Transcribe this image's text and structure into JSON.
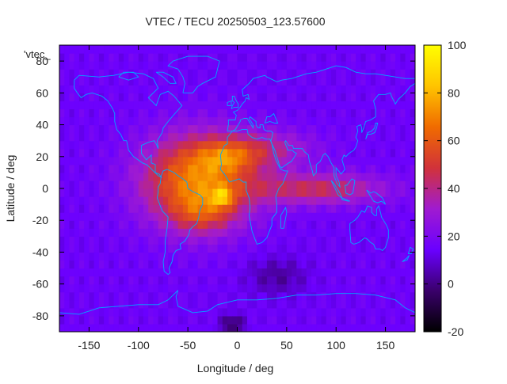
{
  "chart_data": {
    "type": "heatmap",
    "title": "VTEC / TECU 20250503_123.57600",
    "xlabel": "Longitude / deg",
    "ylabel": "Latitude / deg",
    "xlim": [
      -180,
      180
    ],
    "ylim": [
      -90,
      90
    ],
    "x_ticks": [
      -150,
      -100,
      -50,
      0,
      50,
      100,
      150
    ],
    "y_ticks": [
      -80,
      -60,
      -40,
      -20,
      0,
      20,
      40,
      60,
      80
    ],
    "colorbar": {
      "range": [
        -20,
        100
      ],
      "ticks": [
        -20,
        0,
        20,
        40,
        60,
        80,
        100
      ],
      "colors": [
        "#000000",
        "#3a006b",
        "#6a00ff",
        "#a01bd0",
        "#d1323a",
        "#f06b00",
        "#ffc400",
        "#ffff00"
      ]
    },
    "legend": {
      "label": "'vtec_",
      "position": "top-left"
    },
    "grid": false,
    "overlay": "coastlines",
    "overlay_color": "#00a8ff",
    "peak": {
      "lon": -15,
      "lat": -5,
      "value": 98
    },
    "features": [
      {
        "name": "equatorial-anomaly-core",
        "lon": -40,
        "lat": 5,
        "value": 80
      },
      {
        "name": "northern-crest",
        "lon": -10,
        "lat": 20,
        "value": 75
      },
      {
        "name": "southern-crest",
        "lon": -35,
        "lat": -15,
        "value": 70
      },
      {
        "name": "indian-ocean-tongue",
        "lon": 80,
        "lat": 0,
        "value": 45
      },
      {
        "name": "background",
        "lon": 150,
        "lat": -50,
        "value": 15
      },
      {
        "name": "south-atlantic-low",
        "lon": 40,
        "lat": -55,
        "value": 2
      },
      {
        "name": "antarctic-low",
        "lon": -5,
        "lat": -85,
        "value": -10
      }
    ]
  }
}
